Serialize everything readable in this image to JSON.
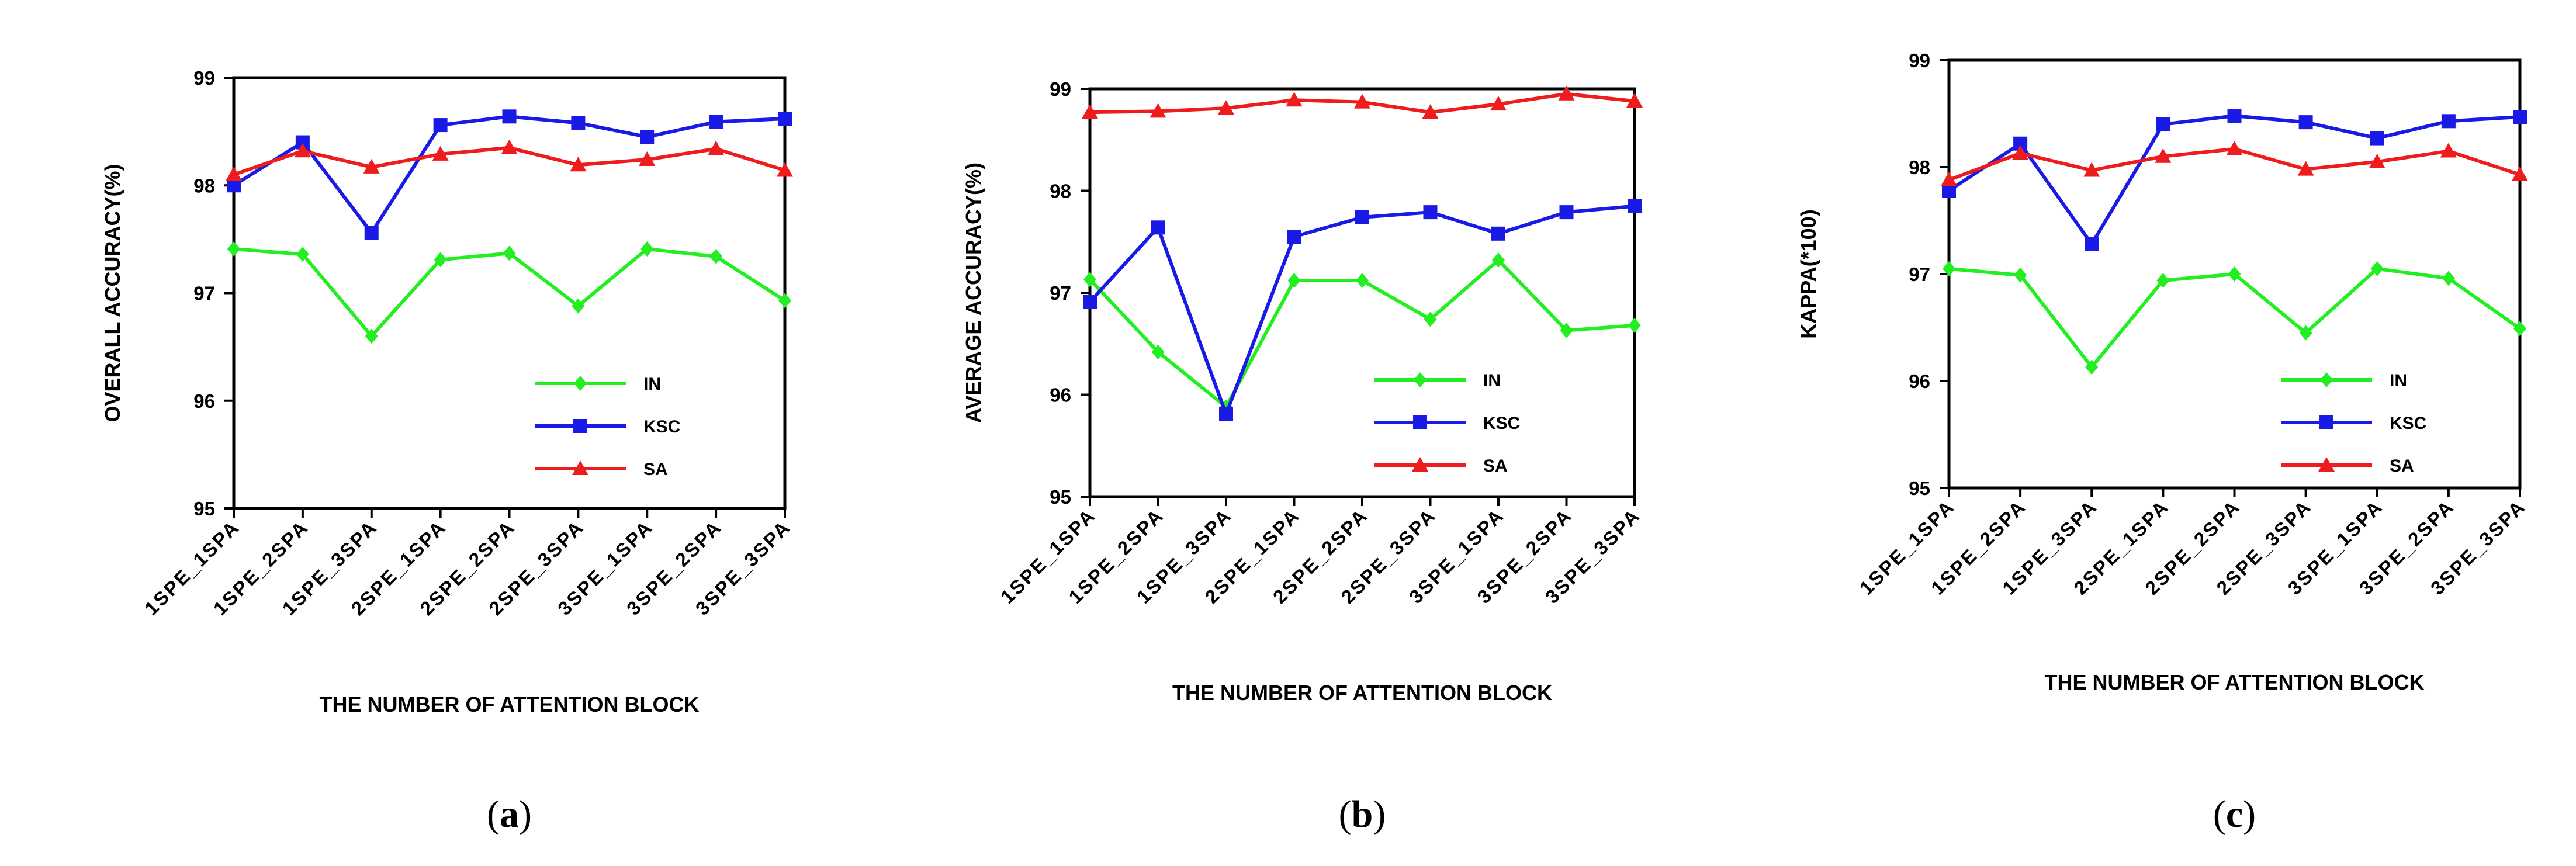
{
  "chart_data": [
    {
      "type": "line",
      "panel_label": "(a)",
      "panel_label_parts": {
        "open": "(",
        "letter": "a",
        "close": ")"
      },
      "xlabel": "THE NUMBER OF ATTENTION BLOCK",
      "ylabel": "OVERALL ACCURACY(%)",
      "ylim": [
        95,
        99
      ],
      "yticks": [
        "95",
        "96",
        "97",
        "98",
        "99"
      ],
      "categories": [
        "1SPE_1SPA",
        "1SPE_2SPA",
        "1SPE_3SPA",
        "2SPE_1SPA",
        "2SPE_2SPA",
        "2SPE_3SPA",
        "3SPE_1SPA",
        "3SPE_2SPA",
        "3SPE_3SPA"
      ],
      "series": [
        {
          "name": "IN",
          "color": "#22ee22",
          "marker": "diamond",
          "values": [
            97.41,
            97.36,
            96.6,
            97.31,
            97.37,
            96.88,
            97.41,
            97.34,
            96.93
          ]
        },
        {
          "name": "KSC",
          "color": "#1a1ae6",
          "marker": "square",
          "values": [
            98.0,
            98.4,
            97.56,
            98.56,
            98.64,
            98.58,
            98.45,
            98.59,
            98.62
          ]
        },
        {
          "name": "SA",
          "color": "#ee1c1c",
          "marker": "triangle",
          "values": [
            98.1,
            98.32,
            98.17,
            98.29,
            98.35,
            98.19,
            98.24,
            98.34,
            98.14
          ]
        }
      ],
      "legend_position": "lower-right"
    },
    {
      "type": "line",
      "panel_label": "(b)",
      "panel_label_parts": {
        "open": "(",
        "letter": "b",
        "close": ")"
      },
      "xlabel": "THE NUMBER OF ATTENTION BLOCK",
      "ylabel": "AVERAGE ACCURACY(%)",
      "ylim": [
        95,
        99
      ],
      "yticks": [
        "95",
        "96",
        "97",
        "98",
        "99"
      ],
      "categories": [
        "1SPE_1SPA",
        "1SPE_2SPA",
        "1SPE_3SPA",
        "2SPE_1SPA",
        "2SPE_2SPA",
        "2SPE_3SPA",
        "3SPE_1SPA",
        "3SPE_2SPA",
        "3SPE_3SPA"
      ],
      "series": [
        {
          "name": "IN",
          "color": "#22ee22",
          "marker": "diamond",
          "values": [
            97.13,
            96.42,
            95.88,
            97.12,
            97.12,
            96.74,
            97.32,
            96.63,
            96.68
          ]
        },
        {
          "name": "KSC",
          "color": "#1a1ae6",
          "marker": "square",
          "values": [
            96.91,
            97.64,
            95.81,
            97.55,
            97.74,
            97.79,
            97.58,
            97.79,
            97.85
          ]
        },
        {
          "name": "SA",
          "color": "#ee1c1c",
          "marker": "triangle",
          "values": [
            98.77,
            98.78,
            98.81,
            98.89,
            98.87,
            98.77,
            98.85,
            98.95,
            98.88
          ]
        }
      ],
      "legend_position": "lower-right"
    },
    {
      "type": "line",
      "panel_label": "(c)",
      "panel_label_parts": {
        "open": "(",
        "letter": "c",
        "close": ")"
      },
      "xlabel": "THE NUMBER OF ATTENTION BLOCK",
      "ylabel": "KAPPA(*100)",
      "ylim": [
        95,
        99
      ],
      "yticks": [
        "95",
        "96",
        "97",
        "98",
        "99"
      ],
      "categories": [
        "1SPE_1SPA",
        "1SPE_2SPA",
        "1SPE_3SPA",
        "2SPE_1SPA",
        "2SPE_2SPA",
        "2SPE_3SPA",
        "3SPE_1SPA",
        "3SPE_2SPA",
        "3SPE_3SPA"
      ],
      "series": [
        {
          "name": "IN",
          "color": "#22ee22",
          "marker": "diamond",
          "values": [
            97.05,
            96.99,
            96.13,
            96.94,
            97.0,
            96.45,
            97.05,
            96.96,
            96.49
          ]
        },
        {
          "name": "KSC",
          "color": "#1a1ae6",
          "marker": "square",
          "values": [
            97.78,
            98.22,
            97.28,
            98.4,
            98.48,
            98.42,
            98.27,
            98.43,
            98.47
          ]
        },
        {
          "name": "SA",
          "color": "#ee1c1c",
          "marker": "triangle",
          "values": [
            97.88,
            98.13,
            97.97,
            98.1,
            98.17,
            97.98,
            98.05,
            98.15,
            97.93
          ]
        }
      ],
      "legend_position": "lower-right"
    }
  ]
}
